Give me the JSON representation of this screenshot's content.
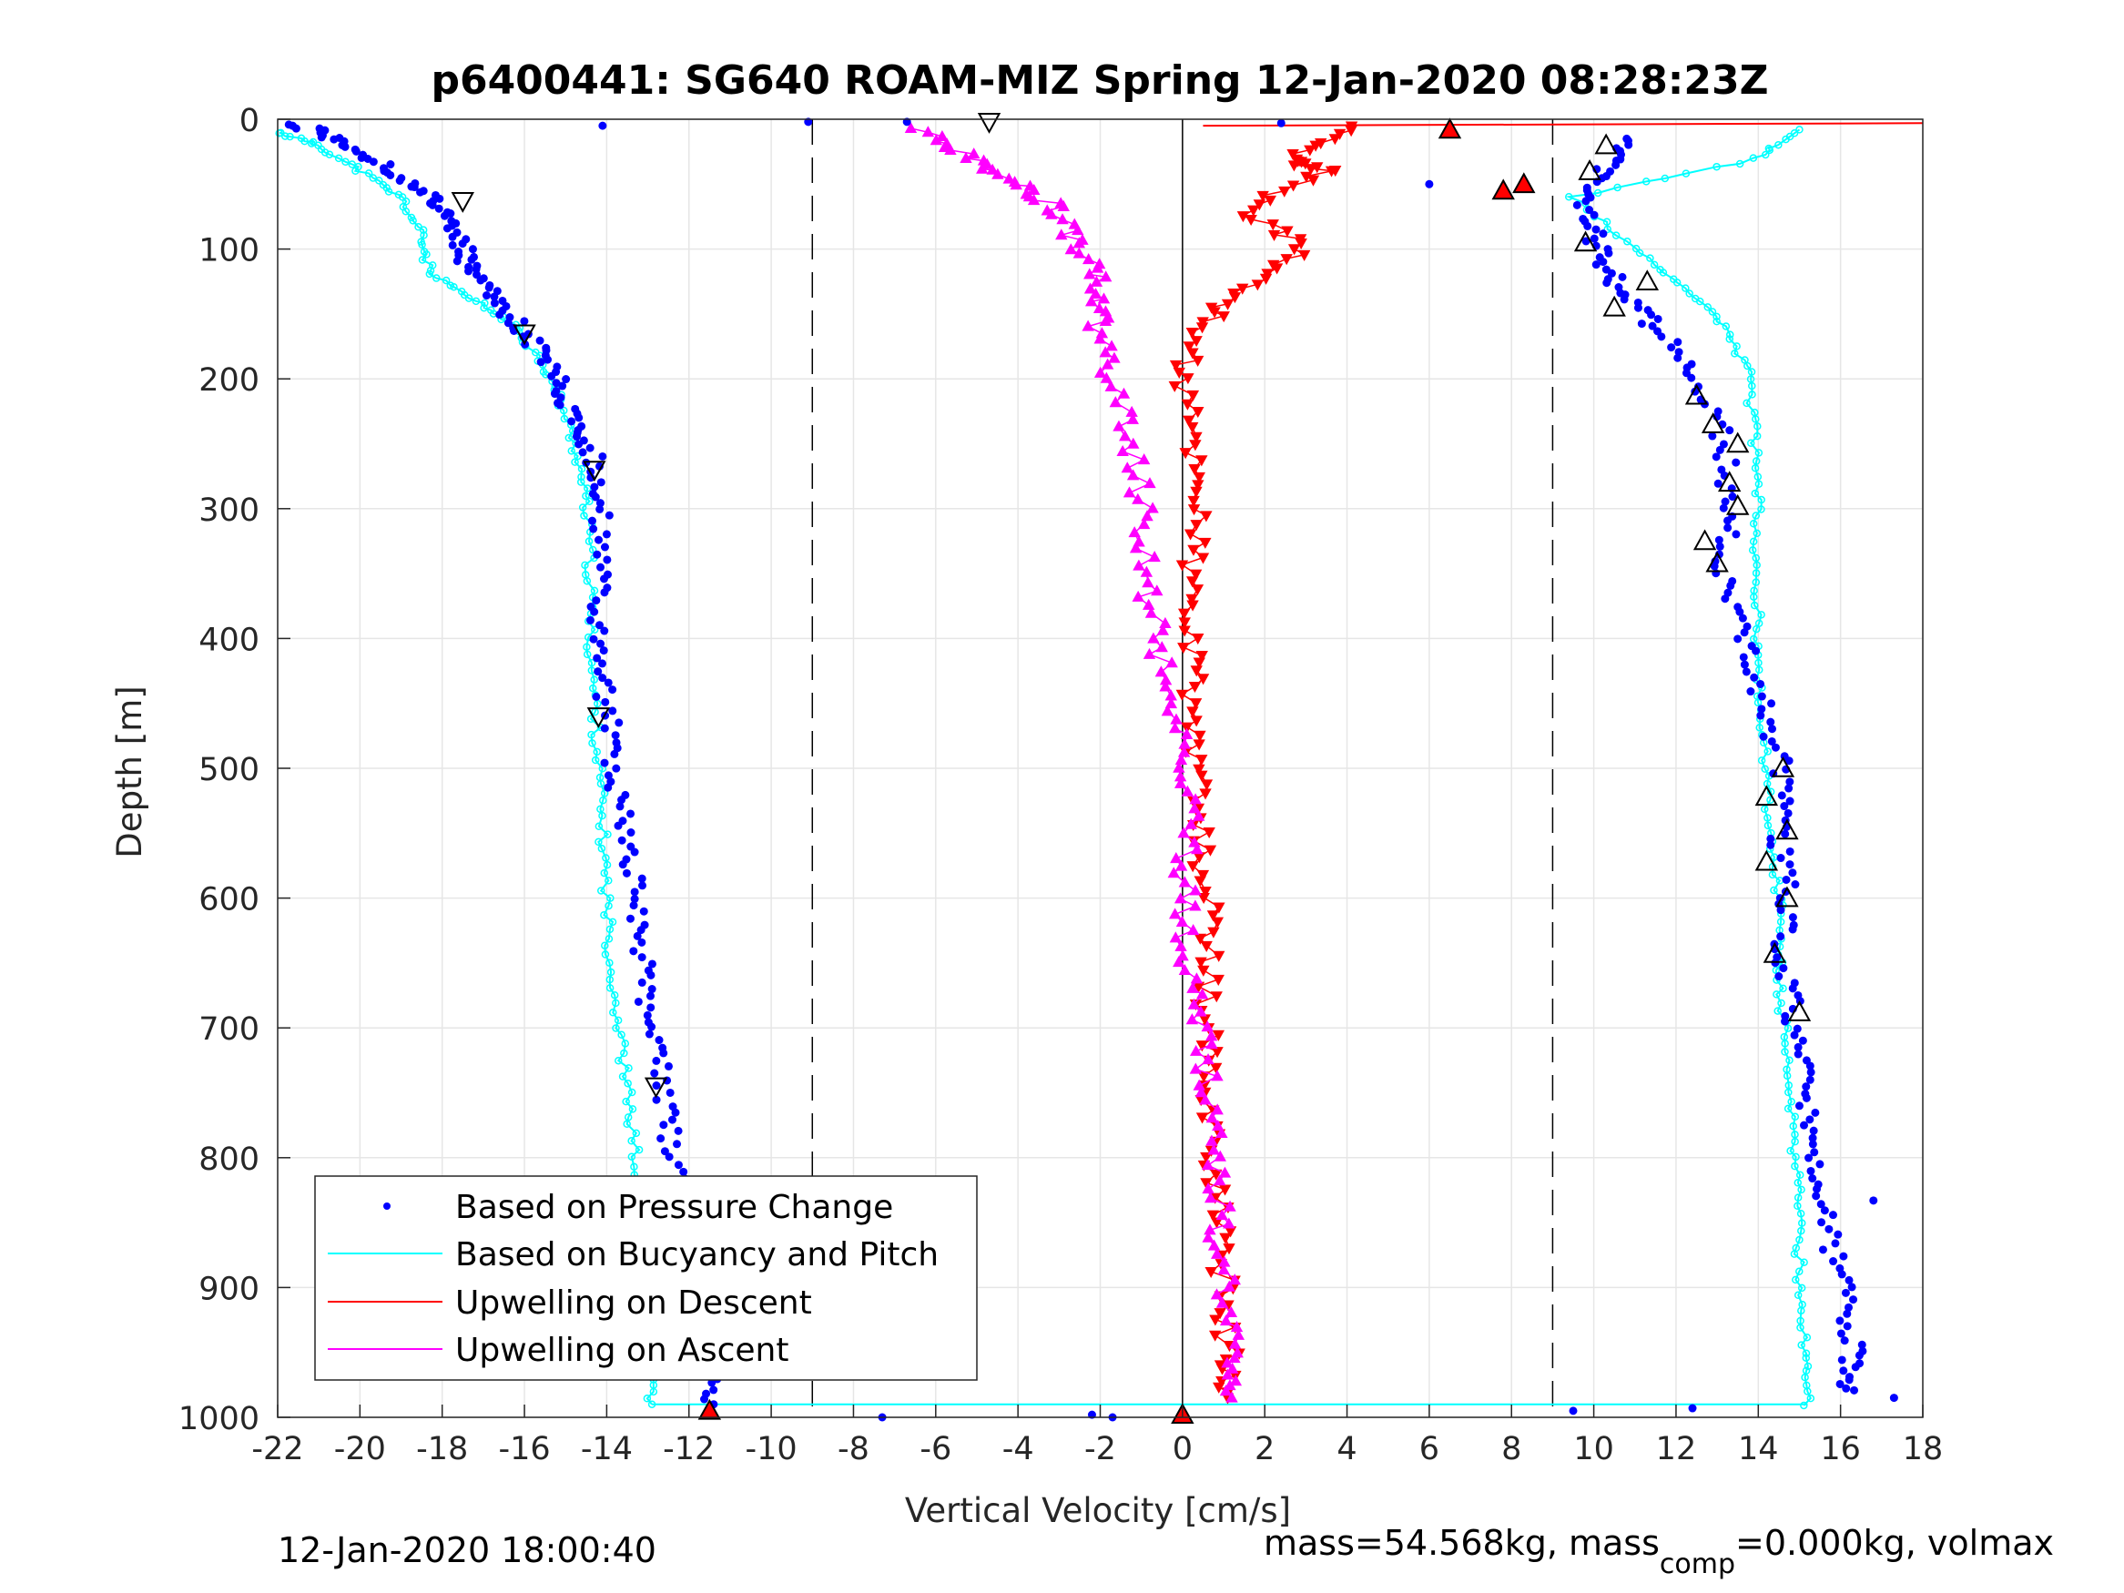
{
  "chart_data": {
    "type": "scatter",
    "title": "p6400441: SG640 ROAM-MIZ Spring 12-Jan-2020 08:28:23Z",
    "xlabel": "Vertical Velocity [cm/s]",
    "ylabel": "Depth [m]",
    "xlim": [
      -22,
      18
    ],
    "ylim": [
      0,
      1000
    ],
    "y_reversed": true,
    "grid": true,
    "legend_position": "bottom-left",
    "x_ticks": [
      "-22",
      "-20",
      "-18",
      "-16",
      "-14",
      "-12",
      "-10",
      "-8",
      "-6",
      "-4",
      "-2",
      "0",
      "2",
      "4",
      "6",
      "8",
      "10",
      "12",
      "14",
      "16",
      "18"
    ],
    "y_ticks": [
      "0",
      "100",
      "200",
      "300",
      "400",
      "500",
      "600",
      "700",
      "800",
      "900",
      "1000"
    ],
    "reference_lines": [
      {
        "x": -9,
        "style": "dashed"
      },
      {
        "x": 9,
        "style": "dashed"
      },
      {
        "x": 0,
        "style": "solid"
      }
    ],
    "series": [
      {
        "name": "Based on Pressure Change",
        "color": "#0000ff",
        "marker": "dot",
        "descent": [
          {
            "x": -21.5,
            "y": 5
          },
          {
            "x": -20.5,
            "y": 15
          },
          {
            "x": -19.5,
            "y": 35
          },
          {
            "x": -18.5,
            "y": 55
          },
          {
            "x": -17.8,
            "y": 75
          },
          {
            "x": -17.5,
            "y": 100
          },
          {
            "x": -17.3,
            "y": 120
          },
          {
            "x": -16.5,
            "y": 145
          },
          {
            "x": -15.8,
            "y": 170
          },
          {
            "x": -15.2,
            "y": 200
          },
          {
            "x": -14.8,
            "y": 230
          },
          {
            "x": -14.3,
            "y": 260
          },
          {
            "x": -14.1,
            "y": 300
          },
          {
            "x": -14.2,
            "y": 350
          },
          {
            "x": -14.3,
            "y": 400
          },
          {
            "x": -14.0,
            "y": 450
          },
          {
            "x": -13.8,
            "y": 500
          },
          {
            "x": -13.6,
            "y": 550
          },
          {
            "x": -13.3,
            "y": 600
          },
          {
            "x": -13.1,
            "y": 650
          },
          {
            "x": -12.9,
            "y": 700
          },
          {
            "x": -12.6,
            "y": 750
          },
          {
            "x": -12.4,
            "y": 800
          },
          {
            "x": -12.2,
            "y": 850
          },
          {
            "x": -11.9,
            "y": 900
          },
          {
            "x": -11.6,
            "y": 950
          },
          {
            "x": -11.4,
            "y": 990
          }
        ],
        "ascent": [
          {
            "x": 16.2,
            "y": 980
          },
          {
            "x": 16.3,
            "y": 950
          },
          {
            "x": 16.1,
            "y": 900
          },
          {
            "x": 15.6,
            "y": 850
          },
          {
            "x": 15.3,
            "y": 800
          },
          {
            "x": 15.1,
            "y": 750
          },
          {
            "x": 14.9,
            "y": 700
          },
          {
            "x": 14.6,
            "y": 650
          },
          {
            "x": 14.7,
            "y": 600
          },
          {
            "x": 14.5,
            "y": 550
          },
          {
            "x": 14.6,
            "y": 500
          },
          {
            "x": 14.1,
            "y": 450
          },
          {
            "x": 13.6,
            "y": 400
          },
          {
            "x": 13.1,
            "y": 350
          },
          {
            "x": 13.3,
            "y": 300
          },
          {
            "x": 13.2,
            "y": 250
          },
          {
            "x": 12.5,
            "y": 200
          },
          {
            "x": 11.5,
            "y": 160
          },
          {
            "x": 10.6,
            "y": 130
          },
          {
            "x": 10.1,
            "y": 100
          },
          {
            "x": 9.8,
            "y": 70
          },
          {
            "x": 10.2,
            "y": 40
          },
          {
            "x": 10.8,
            "y": 15
          }
        ],
        "outliers": [
          {
            "x": -14.1,
            "y": 5
          },
          {
            "x": -9.1,
            "y": 2
          },
          {
            "x": -7.3,
            "y": 1000
          },
          {
            "x": -6.7,
            "y": 2
          },
          {
            "x": -2.2,
            "y": 998
          },
          {
            "x": -1.7,
            "y": 1000
          },
          {
            "x": 2.4,
            "y": 3
          },
          {
            "x": 6.0,
            "y": 50
          },
          {
            "x": 17.3,
            "y": 985
          },
          {
            "x": 16.8,
            "y": 833
          },
          {
            "x": 12.4,
            "y": 993
          },
          {
            "x": 9.5,
            "y": 995
          }
        ]
      },
      {
        "name": "Based on Bucyancy and Pitch",
        "color": "#00ffff",
        "marker": "circle-line",
        "descent": [
          {
            "x": -22.0,
            "y": 10
          },
          {
            "x": -21.0,
            "y": 20
          },
          {
            "x": -20.0,
            "y": 40
          },
          {
            "x": -19.0,
            "y": 60
          },
          {
            "x": -18.5,
            "y": 90
          },
          {
            "x": -18.3,
            "y": 120
          },
          {
            "x": -17.2,
            "y": 140
          },
          {
            "x": -16.2,
            "y": 160
          },
          {
            "x": -15.5,
            "y": 190
          },
          {
            "x": -15.1,
            "y": 220
          },
          {
            "x": -14.7,
            "y": 260
          },
          {
            "x": -14.5,
            "y": 300
          },
          {
            "x": -14.4,
            "y": 350
          },
          {
            "x": -14.4,
            "y": 400
          },
          {
            "x": -14.3,
            "y": 450
          },
          {
            "x": -14.2,
            "y": 500
          },
          {
            "x": -14.1,
            "y": 550
          },
          {
            "x": -14.0,
            "y": 600
          },
          {
            "x": -13.9,
            "y": 650
          },
          {
            "x": -13.7,
            "y": 700
          },
          {
            "x": -13.5,
            "y": 750
          },
          {
            "x": -13.3,
            "y": 800
          },
          {
            "x": -13.2,
            "y": 850
          },
          {
            "x": -13.1,
            "y": 900
          },
          {
            "x": -13.0,
            "y": 950
          },
          {
            "x": -12.9,
            "y": 990
          }
        ],
        "ascent": [
          {
            "x": 15.2,
            "y": 990
          },
          {
            "x": 15.1,
            "y": 950
          },
          {
            "x": 15.0,
            "y": 900
          },
          {
            "x": 15.0,
            "y": 850
          },
          {
            "x": 14.9,
            "y": 800
          },
          {
            "x": 14.8,
            "y": 750
          },
          {
            "x": 14.6,
            "y": 700
          },
          {
            "x": 14.5,
            "y": 650
          },
          {
            "x": 14.5,
            "y": 600
          },
          {
            "x": 14.3,
            "y": 550
          },
          {
            "x": 14.2,
            "y": 500
          },
          {
            "x": 14.1,
            "y": 450
          },
          {
            "x": 14.0,
            "y": 400
          },
          {
            "x": 13.9,
            "y": 350
          },
          {
            "x": 14.0,
            "y": 300
          },
          {
            "x": 13.9,
            "y": 250
          },
          {
            "x": 13.8,
            "y": 200
          },
          {
            "x": 13.2,
            "y": 160
          },
          {
            "x": 12.2,
            "y": 130
          },
          {
            "x": 11.0,
            "y": 100
          },
          {
            "x": 9.5,
            "y": 60
          },
          {
            "x": 14.0,
            "y": 30
          },
          {
            "x": 15.0,
            "y": 8
          }
        ],
        "transit": [
          {
            "x": -12.9,
            "y": 990
          },
          {
            "x": 15.2,
            "y": 990
          }
        ]
      },
      {
        "name": "Upwelling on Descent",
        "color": "#ff0000",
        "marker": "triangle-down",
        "values": [
          {
            "x": 4.0,
            "y": 5
          },
          {
            "x": 2.5,
            "y": 30
          },
          {
            "x": 3.5,
            "y": 40
          },
          {
            "x": 1.5,
            "y": 70
          },
          {
            "x": 3.0,
            "y": 100
          },
          {
            "x": 1.5,
            "y": 130
          },
          {
            "x": 0.5,
            "y": 160
          },
          {
            "x": 0.0,
            "y": 200
          },
          {
            "x": 0.3,
            "y": 250
          },
          {
            "x": 0.5,
            "y": 300
          },
          {
            "x": 0.2,
            "y": 350
          },
          {
            "x": 0.2,
            "y": 400
          },
          {
            "x": 0.3,
            "y": 450
          },
          {
            "x": 0.3,
            "y": 500
          },
          {
            "x": 0.4,
            "y": 550
          },
          {
            "x": 0.6,
            "y": 600
          },
          {
            "x": 0.6,
            "y": 650
          },
          {
            "x": 0.6,
            "y": 700
          },
          {
            "x": 0.7,
            "y": 750
          },
          {
            "x": 0.8,
            "y": 800
          },
          {
            "x": 0.9,
            "y": 850
          },
          {
            "x": 1.0,
            "y": 900
          },
          {
            "x": 1.1,
            "y": 950
          },
          {
            "x": 1.1,
            "y": 985
          }
        ]
      },
      {
        "name": "Upwelling on Ascent",
        "color": "#ff00ff",
        "marker": "triangle-up",
        "values": [
          {
            "x": -6.5,
            "y": 8
          },
          {
            "x": -5.0,
            "y": 30
          },
          {
            "x": -4.0,
            "y": 50
          },
          {
            "x": -3.0,
            "y": 70
          },
          {
            "x": -2.5,
            "y": 100
          },
          {
            "x": -2.0,
            "y": 130
          },
          {
            "x": -2.0,
            "y": 160
          },
          {
            "x": -1.8,
            "y": 200
          },
          {
            "x": -1.2,
            "y": 250
          },
          {
            "x": -1.0,
            "y": 300
          },
          {
            "x": -0.9,
            "y": 350
          },
          {
            "x": -0.6,
            "y": 400
          },
          {
            "x": -0.3,
            "y": 450
          },
          {
            "x": 0.1,
            "y": 500
          },
          {
            "x": 0.2,
            "y": 550
          },
          {
            "x": 0.0,
            "y": 600
          },
          {
            "x": 0.2,
            "y": 650
          },
          {
            "x": 0.4,
            "y": 700
          },
          {
            "x": 0.6,
            "y": 750
          },
          {
            "x": 0.8,
            "y": 800
          },
          {
            "x": 0.9,
            "y": 850
          },
          {
            "x": 1.0,
            "y": 900
          },
          {
            "x": 1.1,
            "y": 950
          },
          {
            "x": 1.2,
            "y": 985
          }
        ]
      }
    ],
    "markers": {
      "hollow_triangles_descent": [
        {
          "x": -4.7,
          "y": 2
        },
        {
          "x": -17.5,
          "y": 63
        },
        {
          "x": -16.0,
          "y": 165
        },
        {
          "x": -14.3,
          "y": 270
        },
        {
          "x": -14.2,
          "y": 460
        },
        {
          "x": -12.8,
          "y": 745
        }
      ],
      "hollow_triangles_ascent": [
        {
          "x": 10.3,
          "y": 20
        },
        {
          "x": 9.9,
          "y": 40
        },
        {
          "x": 9.8,
          "y": 95
        },
        {
          "x": 11.3,
          "y": 125
        },
        {
          "x": 10.5,
          "y": 145
        },
        {
          "x": 12.5,
          "y": 213
        },
        {
          "x": 12.9,
          "y": 235
        },
        {
          "x": 13.5,
          "y": 250
        },
        {
          "x": 13.3,
          "y": 280
        },
        {
          "x": 13.5,
          "y": 298
        },
        {
          "x": 12.7,
          "y": 325
        },
        {
          "x": 13.0,
          "y": 342
        },
        {
          "x": 14.6,
          "y": 500
        },
        {
          "x": 14.2,
          "y": 522
        },
        {
          "x": 14.7,
          "y": 548
        },
        {
          "x": 14.2,
          "y": 572
        },
        {
          "x": 14.7,
          "y": 600
        },
        {
          "x": 14.4,
          "y": 643
        },
        {
          "x": 15.0,
          "y": 688
        }
      ],
      "red_filled_triangles": [
        {
          "x": 6.5,
          "y": 8
        },
        {
          "x": 8.3,
          "y": 50
        },
        {
          "x": 7.8,
          "y": 55
        },
        {
          "x": -11.5,
          "y": 995
        },
        {
          "x": 0.0,
          "y": 998
        }
      ]
    },
    "footer_left": "12-Jan-2020 18:00:40",
    "footer_right_prefix": "mass=54.568kg, mass",
    "footer_right_subscript": "comp",
    "footer_right_suffix": "=0.000kg, volmax"
  }
}
